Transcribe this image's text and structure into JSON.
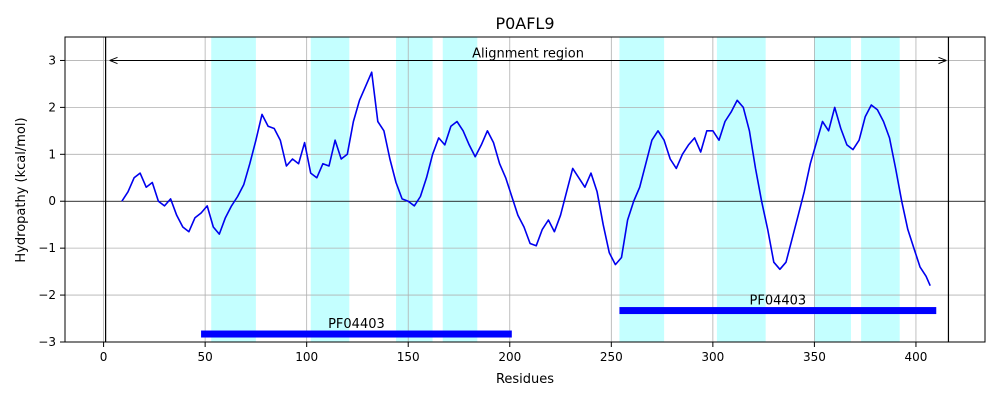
{
  "chart_data": {
    "type": "line",
    "title": "P0AFL9",
    "xlabel": "Residues",
    "ylabel": "Hydropathy (kcal/mol)",
    "xlim": [
      -19,
      434
    ],
    "ylim": [
      -3,
      3.5
    ],
    "xticks": [
      0,
      50,
      100,
      150,
      200,
      250,
      300,
      350,
      400
    ],
    "yticks": [
      -3,
      -2,
      -1,
      0,
      1,
      2,
      3
    ],
    "grid": true,
    "line_color": "#0000ee",
    "band_color": "#c4ffff",
    "domain_color": "#0000ff",
    "hydropathy": {
      "x": [
        9,
        12,
        15,
        18,
        21,
        24,
        27,
        30,
        33,
        36,
        39,
        42,
        45,
        48,
        51,
        54,
        57,
        60,
        63,
        66,
        69,
        72,
        75,
        78,
        81,
        84,
        87,
        90,
        93,
        96,
        99,
        102,
        105,
        108,
        111,
        114,
        117,
        120,
        123,
        126,
        129,
        132,
        135,
        138,
        141,
        144,
        147,
        150,
        153,
        156,
        159,
        162,
        165,
        168,
        171,
        174,
        177,
        180,
        183,
        186,
        189,
        192,
        195,
        198,
        201,
        204,
        207,
        210,
        213,
        216,
        219,
        222,
        225,
        228,
        231,
        234,
        237,
        240,
        243,
        246,
        249,
        252,
        255,
        258,
        261,
        264,
        267,
        270,
        273,
        276,
        279,
        282,
        285,
        288,
        291,
        294,
        297,
        300,
        303,
        306,
        309,
        312,
        315,
        318,
        321,
        324,
        327,
        330,
        333,
        336,
        339,
        342,
        345,
        348,
        351,
        354,
        357,
        360,
        363,
        366,
        369,
        372,
        375,
        378,
        381,
        384,
        387,
        390,
        393,
        396,
        399,
        402,
        405,
        407
      ],
      "y": [
        0.0,
        0.2,
        0.5,
        0.6,
        0.3,
        0.4,
        0.0,
        -0.1,
        0.05,
        -0.3,
        -0.55,
        -0.65,
        -0.35,
        -0.25,
        -0.1,
        -0.55,
        -0.7,
        -0.35,
        -0.1,
        0.1,
        0.35,
        0.8,
        1.3,
        1.85,
        1.6,
        1.55,
        1.3,
        0.75,
        0.9,
        0.8,
        1.25,
        0.6,
        0.5,
        0.8,
        0.75,
        1.3,
        0.9,
        1.0,
        1.7,
        2.15,
        2.45,
        2.75,
        1.7,
        1.5,
        0.9,
        0.4,
        0.05,
        0.0,
        -0.1,
        0.1,
        0.5,
        1.0,
        1.35,
        1.2,
        1.6,
        1.7,
        1.5,
        1.2,
        0.95,
        1.2,
        1.5,
        1.25,
        0.8,
        0.5,
        0.1,
        -0.3,
        -0.55,
        -0.9,
        -0.95,
        -0.6,
        -0.4,
        -0.65,
        -0.3,
        0.2,
        0.7,
        0.5,
        0.3,
        0.6,
        0.2,
        -0.5,
        -1.1,
        -1.35,
        -1.2,
        -0.4,
        0.0,
        0.3,
        0.8,
        1.3,
        1.5,
        1.3,
        0.9,
        0.7,
        1.0,
        1.2,
        1.35,
        1.05,
        1.5,
        1.5,
        1.3,
        1.7,
        1.9,
        2.15,
        2.0,
        1.5,
        0.7,
        0.0,
        -0.6,
        -1.3,
        -1.45,
        -1.3,
        -0.8,
        -0.3,
        0.2,
        0.8,
        1.25,
        1.7,
        1.5,
        2.0,
        1.55,
        1.2,
        1.1,
        1.3,
        1.8,
        2.05,
        1.95,
        1.7,
        1.35,
        0.7,
        0.0,
        -0.6,
        -1.0,
        -1.4,
        -1.6,
        -1.8
      ]
    },
    "helix_bands": [
      [
        53,
        75
      ],
      [
        102,
        121
      ],
      [
        144,
        162
      ],
      [
        167,
        184
      ],
      [
        254,
        276
      ],
      [
        302,
        326
      ],
      [
        350,
        368
      ],
      [
        373,
        392
      ]
    ],
    "vertical_lines": [
      1,
      416
    ],
    "alignment_region": {
      "label": "Alignment region",
      "start": 3,
      "end": 415,
      "y": 3.0
    },
    "domains": [
      {
        "label": "PF04403",
        "start": 48,
        "end": 201,
        "y": -2.83
      },
      {
        "label": "PF04403",
        "start": 254,
        "end": 410,
        "y": -2.33
      }
    ]
  }
}
